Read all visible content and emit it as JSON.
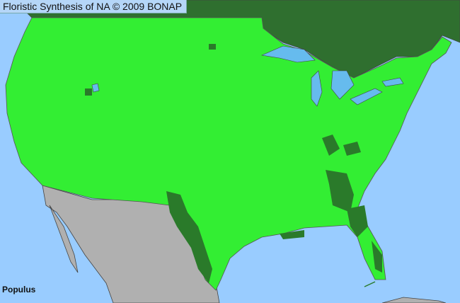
{
  "title": "Floristic Synthesis of NA © 2009 BONAP",
  "taxon_label": "Populus",
  "colors": {
    "ocean": "#99ccff",
    "lakes": "#66bbee",
    "canada": "#2f6f2f",
    "present_state": "#33ee33",
    "county_dark": "#2a7a2a",
    "mexico": "#b0b0b0",
    "border_lines": "#555555"
  }
}
